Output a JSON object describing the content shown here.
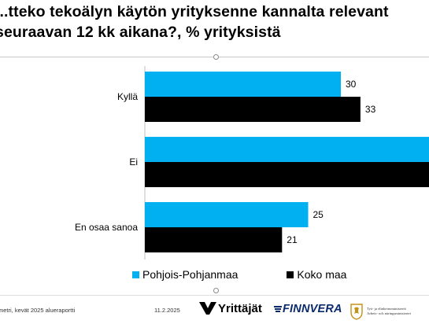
{
  "title": {
    "line1": "...tteko tekoälyn käytön yrityksenne kannalta relevant",
    "line2": "seuraavan 12 kk aikana?, % yrityksistä"
  },
  "chart_data": {
    "type": "bar",
    "orientation": "horizontal",
    "categories": [
      "Kyllä",
      "Ei",
      "En osaa sanoa"
    ],
    "series": [
      {
        "name": "Pohjois-Pohjanmaa",
        "color": "#00b0f0",
        "values": [
          30,
          45,
          25
        ]
      },
      {
        "name": "Koko maa",
        "color": "#000000",
        "values": [
          33,
          46,
          21
        ]
      }
    ],
    "value_labels_shown": [
      [
        30,
        null,
        25
      ],
      [
        33,
        null,
        21
      ]
    ],
    "xlim": [
      0,
      45
    ],
    "legend": "bottom",
    "grid": false
  },
  "legend": {
    "items": [
      {
        "label": "Pohjois-Pohjanmaa",
        "color": "#00b0f0"
      },
      {
        "label": "Koko maa",
        "color": "#000000"
      }
    ]
  },
  "footer": {
    "source": "metri, kevät 2025 alueraportti",
    "date": "11.2.2025",
    "logo_yrittajat": "Yrittäjät",
    "logo_finnvera": "FINNVERA",
    "logo_tem_line1": "Työ- ja elinkeinoministeriö",
    "logo_tem_line2": "Arbets- och näringsministeriet"
  }
}
